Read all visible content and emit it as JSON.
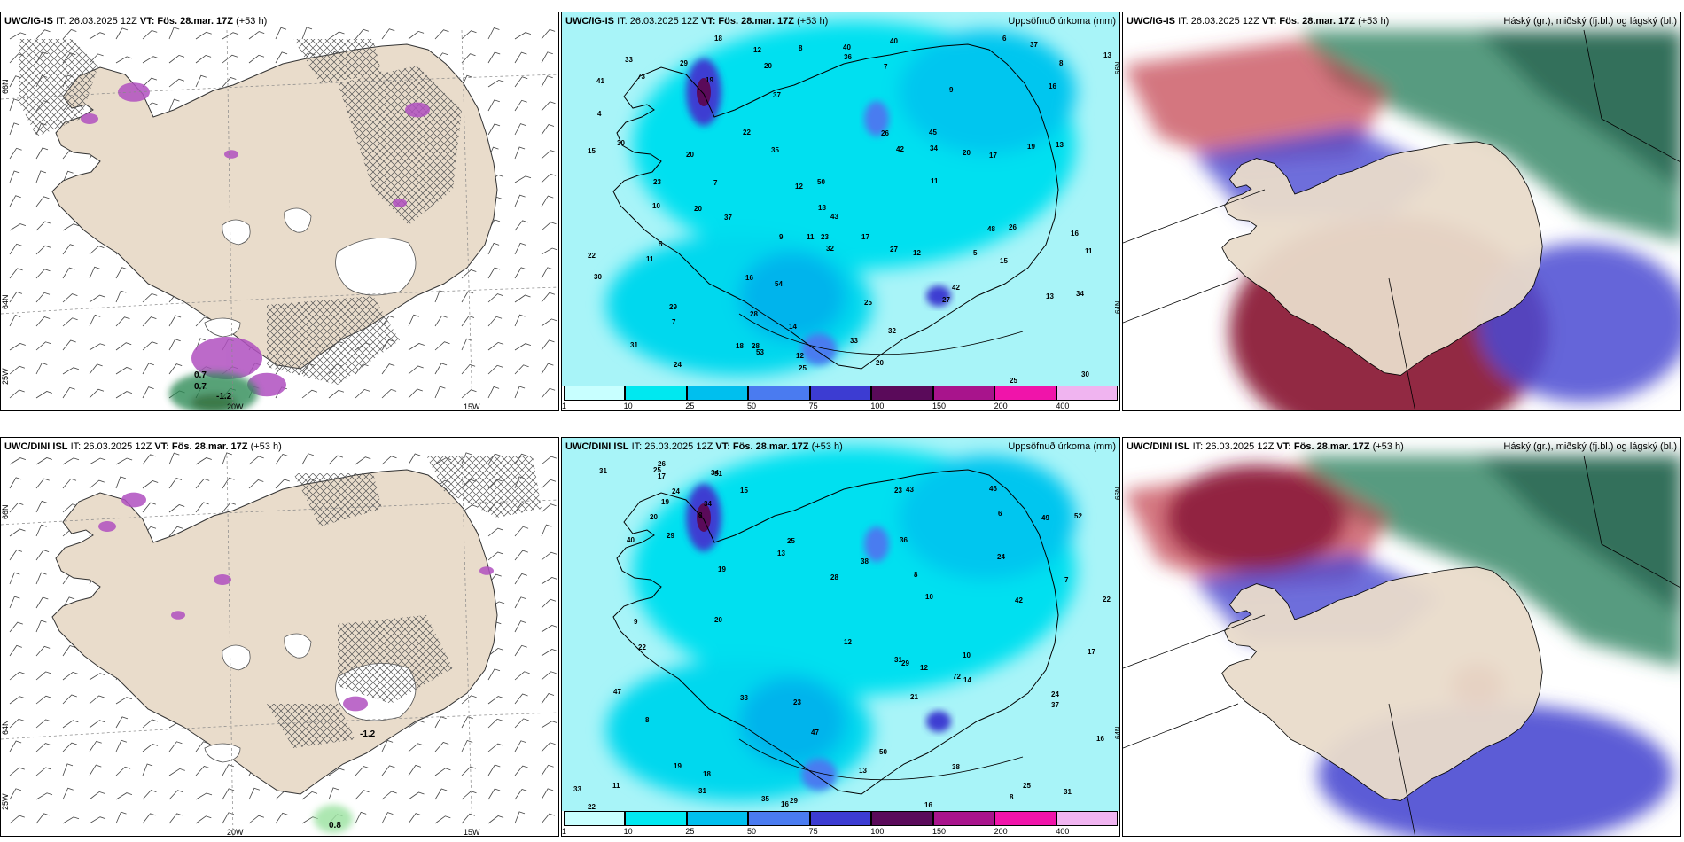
{
  "panels": {
    "p1": {
      "model": "UWC/IG-IS",
      "init": "IT: 26.03.2025 12Z",
      "valid": "VT: Fös. 28.mar. 17Z",
      "lead": "(+53 h)",
      "right_title": ""
    },
    "p2": {
      "model": "UWC/IG-IS",
      "init": "IT: 26.03.2025 12Z",
      "valid": "VT: Fös. 28.mar. 17Z",
      "lead": "(+53 h)",
      "right_title": "Uppsöfnuð úrkoma (mm)"
    },
    "p3": {
      "model": "UWC/IG-IS",
      "init": "IT: 26.03.2025 12Z",
      "valid": "VT: Fös. 28.mar. 17Z",
      "lead": "(+53 h)",
      "right_title": "Háský (gr.), miðský (fj.bl.) og lágský (bl.)"
    },
    "p4": {
      "model": "UWC/DINI ISL",
      "init": "IT: 26.03.2025 12Z",
      "valid": "VT: Fös. 28.mar. 17Z",
      "lead": "(+53 h)",
      "right_title": ""
    },
    "p5": {
      "model": "UWC/DINI ISL",
      "init": "IT: 26.03.2025 12Z",
      "valid": "VT: Fös. 28.mar. 17Z",
      "lead": "(+53 h)",
      "right_title": "Uppsöfnuð úrkoma (mm)"
    },
    "p6": {
      "model": "UWC/DINI ISL",
      "init": "IT: 26.03.2025 12Z",
      "valid": "VT: Fös. 28.mar. 17Z",
      "lead": "(+53 h)",
      "right_title": "Háský (gr.), miðský (fj.bl.) og lágský (bl.)"
    }
  },
  "geo_labels": {
    "lon_20": "20W",
    "lon_15": "15W",
    "lon_25": "25W",
    "lat_64": "64N",
    "lat_66": "66N"
  },
  "temp_labels": {
    "p1": [
      "0.7",
      "0.7",
      "-1.2"
    ],
    "p4": [
      "-1.2",
      "0.8"
    ]
  },
  "colorbar": {
    "ticks": [
      "1",
      "10",
      "25",
      "50",
      "75",
      "100",
      "150",
      "200",
      "400"
    ],
    "colors": [
      "#c8ffff",
      "#00e8f0",
      "#00bfee",
      "#4a7bf0",
      "#3c3cd2",
      "#5a0a5a",
      "#a8148c",
      "#f014aa",
      "#f0b4f0"
    ]
  },
  "precip_values": {
    "p2": [
      "16",
      "17",
      "20",
      "27",
      "30",
      "7",
      "13",
      "37",
      "48",
      "29",
      "28",
      "32",
      "26",
      "15",
      "42",
      "33",
      "27",
      "40",
      "53",
      "41",
      "36",
      "54",
      "43",
      "34",
      "11",
      "19",
      "23",
      "25",
      "45",
      "50",
      "33",
      "30",
      "29",
      "22",
      "26",
      "42",
      "12",
      "20",
      "16",
      "20",
      "40",
      "35",
      "32",
      "18",
      "24",
      "28",
      "34",
      "31",
      "37",
      "22",
      "18",
      "17",
      "9",
      "7",
      "5",
      "4",
      "6",
      "5",
      "37",
      "23",
      "13",
      "15",
      "16",
      "13",
      "12",
      "8",
      "11",
      "12",
      "9",
      "8",
      "7",
      "73",
      "20",
      "25",
      "30",
      "11",
      "25",
      "20",
      "19",
      "12",
      "18",
      "10",
      "11",
      "14"
    ],
    "p5": [
      "23",
      "24",
      "31",
      "29",
      "72",
      "13",
      "12",
      "37",
      "52",
      "36",
      "47",
      "46",
      "51",
      "50",
      "16",
      "24",
      "10",
      "40",
      "38",
      "49",
      "34",
      "42",
      "35",
      "26",
      "33",
      "28",
      "29",
      "13",
      "31",
      "43",
      "33",
      "31",
      "25",
      "22",
      "25",
      "19",
      "20",
      "18",
      "31",
      "38",
      "16",
      "47",
      "17",
      "14",
      "11",
      "8",
      "6",
      "8",
      "22",
      "19",
      "17",
      "9",
      "8",
      "24",
      "23",
      "19",
      "20",
      "34",
      "21",
      "25",
      "16",
      "12",
      "8",
      "7",
      "10",
      "15",
      "29",
      "22"
    ]
  },
  "colors": {
    "land": "#e9dccb",
    "precip_bg": "#a8f4f8"
  }
}
